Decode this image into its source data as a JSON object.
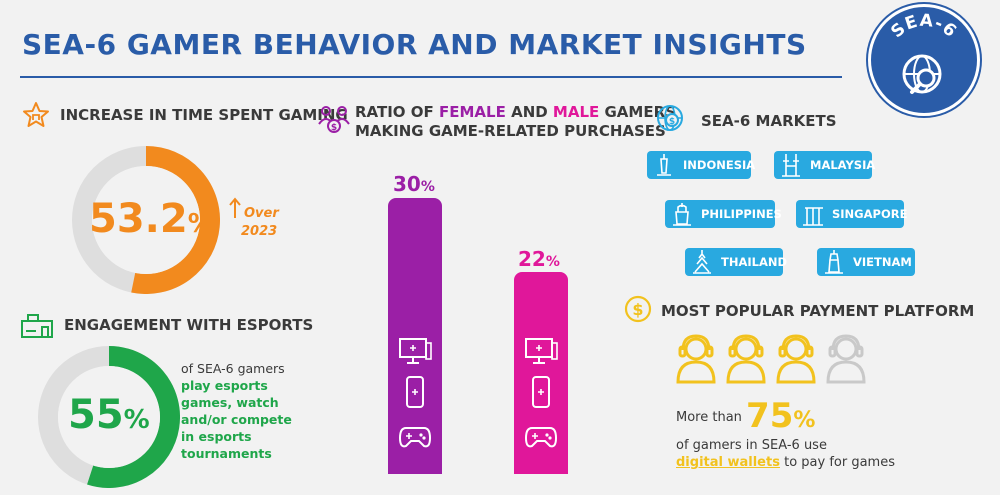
{
  "header": {
    "title": "SEA-6 GAMER BEHAVIOR AND MARKET INSIGHTS",
    "badge": "SEA-6"
  },
  "time_spent": {
    "heading": "INCREASE IN TIME SPENT GAMING",
    "value": "53.2",
    "unit": "%",
    "fraction": 0.532,
    "note_line1": "Over",
    "note_line2": "2023",
    "color": "#f28a1e"
  },
  "esports": {
    "heading": "ENGAGEMENT WITH ESPORTS",
    "value": "55",
    "unit": "%",
    "fraction": 0.55,
    "desc_line1": "of SEA-6 gamers",
    "desc_line2": "play esports",
    "desc_line3": "games, watch",
    "desc_line4": "and/or compete",
    "desc_line5": "in esports",
    "desc_line6": "tournaments",
    "color": "#1fa64a"
  },
  "ratio": {
    "heading_part1": "RATIO OF ",
    "heading_female": "FEMALE",
    "heading_part2": " AND ",
    "heading_male": "MALE",
    "heading_part3": " GAMERS",
    "heading_line2": "MAKING GAME-RELATED PURCHASES",
    "female_value": "30",
    "male_value": "22",
    "unit": "%",
    "female_color": "#9b1fa6",
    "male_color": "#e0179a"
  },
  "chart_data": {
    "type": "bar",
    "categories": [
      "FEMALE",
      "MALE"
    ],
    "values": [
      30,
      22
    ],
    "ylim": [
      0,
      30
    ]
  },
  "markets": {
    "heading": "SEA-6 MARKETS",
    "items": [
      "INDONESIA",
      "MALAYSIA",
      "PHILIPPINES",
      "SINGAPORE",
      "THAILAND",
      "VIETNAM"
    ],
    "color": "#29a9e0"
  },
  "payment": {
    "heading": "MOST POPULAR PAYMENT PLATFORM",
    "prefix": "More than ",
    "value": "75",
    "unit": "%",
    "line2": "of gamers in SEA-6 use",
    "highlight": "digital wallets",
    "suffix": " to pay for games",
    "highlight_color": "#f2c21e"
  }
}
